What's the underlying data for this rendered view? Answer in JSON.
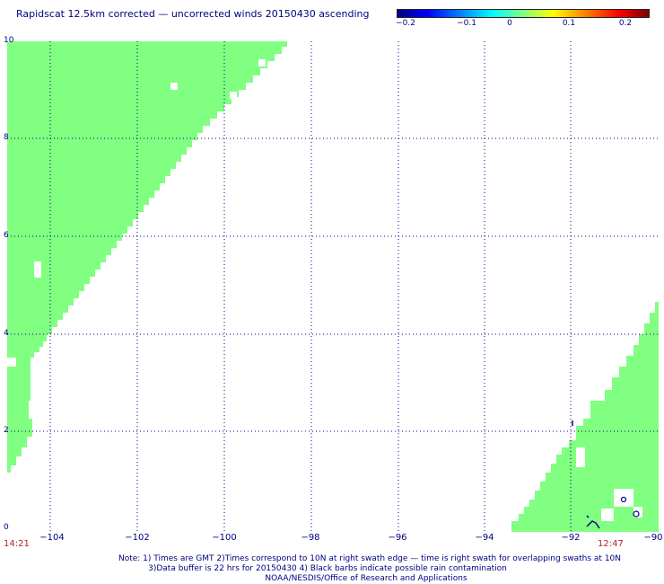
{
  "header": {
    "title": "Rapidscat 12.5km corrected — uncorrected winds 20150430 ascending"
  },
  "colorbar": {
    "tick_labels": [
      "−0.2",
      "−0.1",
      "0",
      "0.1",
      "0.2"
    ]
  },
  "axes": {
    "y_labels": [
      "10",
      "8",
      "6",
      "4",
      "2",
      "0"
    ],
    "x_labels": [
      "−104",
      "−102",
      "−100",
      "−98",
      "−96",
      "−94",
      "−92",
      "−90"
    ]
  },
  "times": {
    "left": "14:21",
    "right": "12:47"
  },
  "footer": {
    "line1": "Note: 1) Times are GMT 2)Times correspond to 10N at right swath edge — time is right swath for overlapping swaths at 10N",
    "line2": "3)Data buffer is 22 hrs for 20150430 4) Black barbs indicate possible rain contamination",
    "line3": "NOAA/NESDIS/Office of Research and Applications"
  },
  "map": {
    "lat_range": [
      0,
      10
    ],
    "lon_range": [
      -105,
      -90
    ],
    "swath_color": "#80ff80",
    "grid_color": "#00008b"
  }
}
